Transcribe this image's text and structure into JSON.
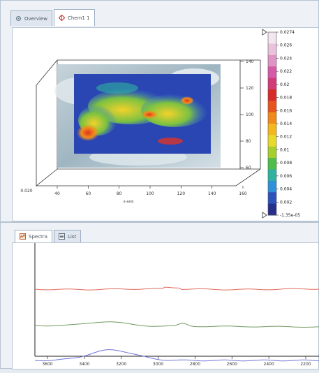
{
  "top_tabs": [
    {
      "label": "Overview",
      "icon": "gear-icon"
    },
    {
      "label": "Chem1 1",
      "icon": "diamond-icon"
    }
  ],
  "map_plot": {
    "x_ticks": [
      "40",
      "60",
      "80",
      "100",
      "120",
      "140",
      "160"
    ],
    "x_axis_label": "x-axis",
    "y_ticks": [
      "140",
      "120",
      "100",
      "80",
      "60"
    ],
    "z_tick": "0.020",
    "colorbar_labels": [
      "0.0274",
      "0.026",
      "0.024",
      "0.022",
      "0.02",
      "0.018",
      "0.016",
      "0.014",
      "0.012",
      "0.01",
      "0.008",
      "0.006",
      "0.004",
      "0.002",
      "-1.35e-05"
    ],
    "colorbar_colors": [
      "#f3e6ef",
      "#ebc2dc",
      "#e094c6",
      "#d65aa8",
      "#d23a78",
      "#d92a2a",
      "#e8541e",
      "#f08a1a",
      "#f3b81e",
      "#e8d92a",
      "#a6cf2c",
      "#4fbd4a",
      "#2fb3a0",
      "#2f8fd8",
      "#2d52b8",
      "#26308a"
    ]
  },
  "bottom_tabs": [
    {
      "label": "Spectra",
      "icon": "spectra-icon"
    },
    {
      "label": "List",
      "icon": "list-icon"
    }
  ],
  "chart_data": {
    "type": "line",
    "x_ticks": [
      "3600",
      "3400",
      "3200",
      "3000",
      "2800",
      "2600",
      "2400",
      "2200"
    ],
    "x_reversed": true,
    "series": [
      {
        "color": "#e06a5c"
      },
      {
        "color": "#6f9a62"
      },
      {
        "color": "#6f74d6"
      }
    ]
  }
}
